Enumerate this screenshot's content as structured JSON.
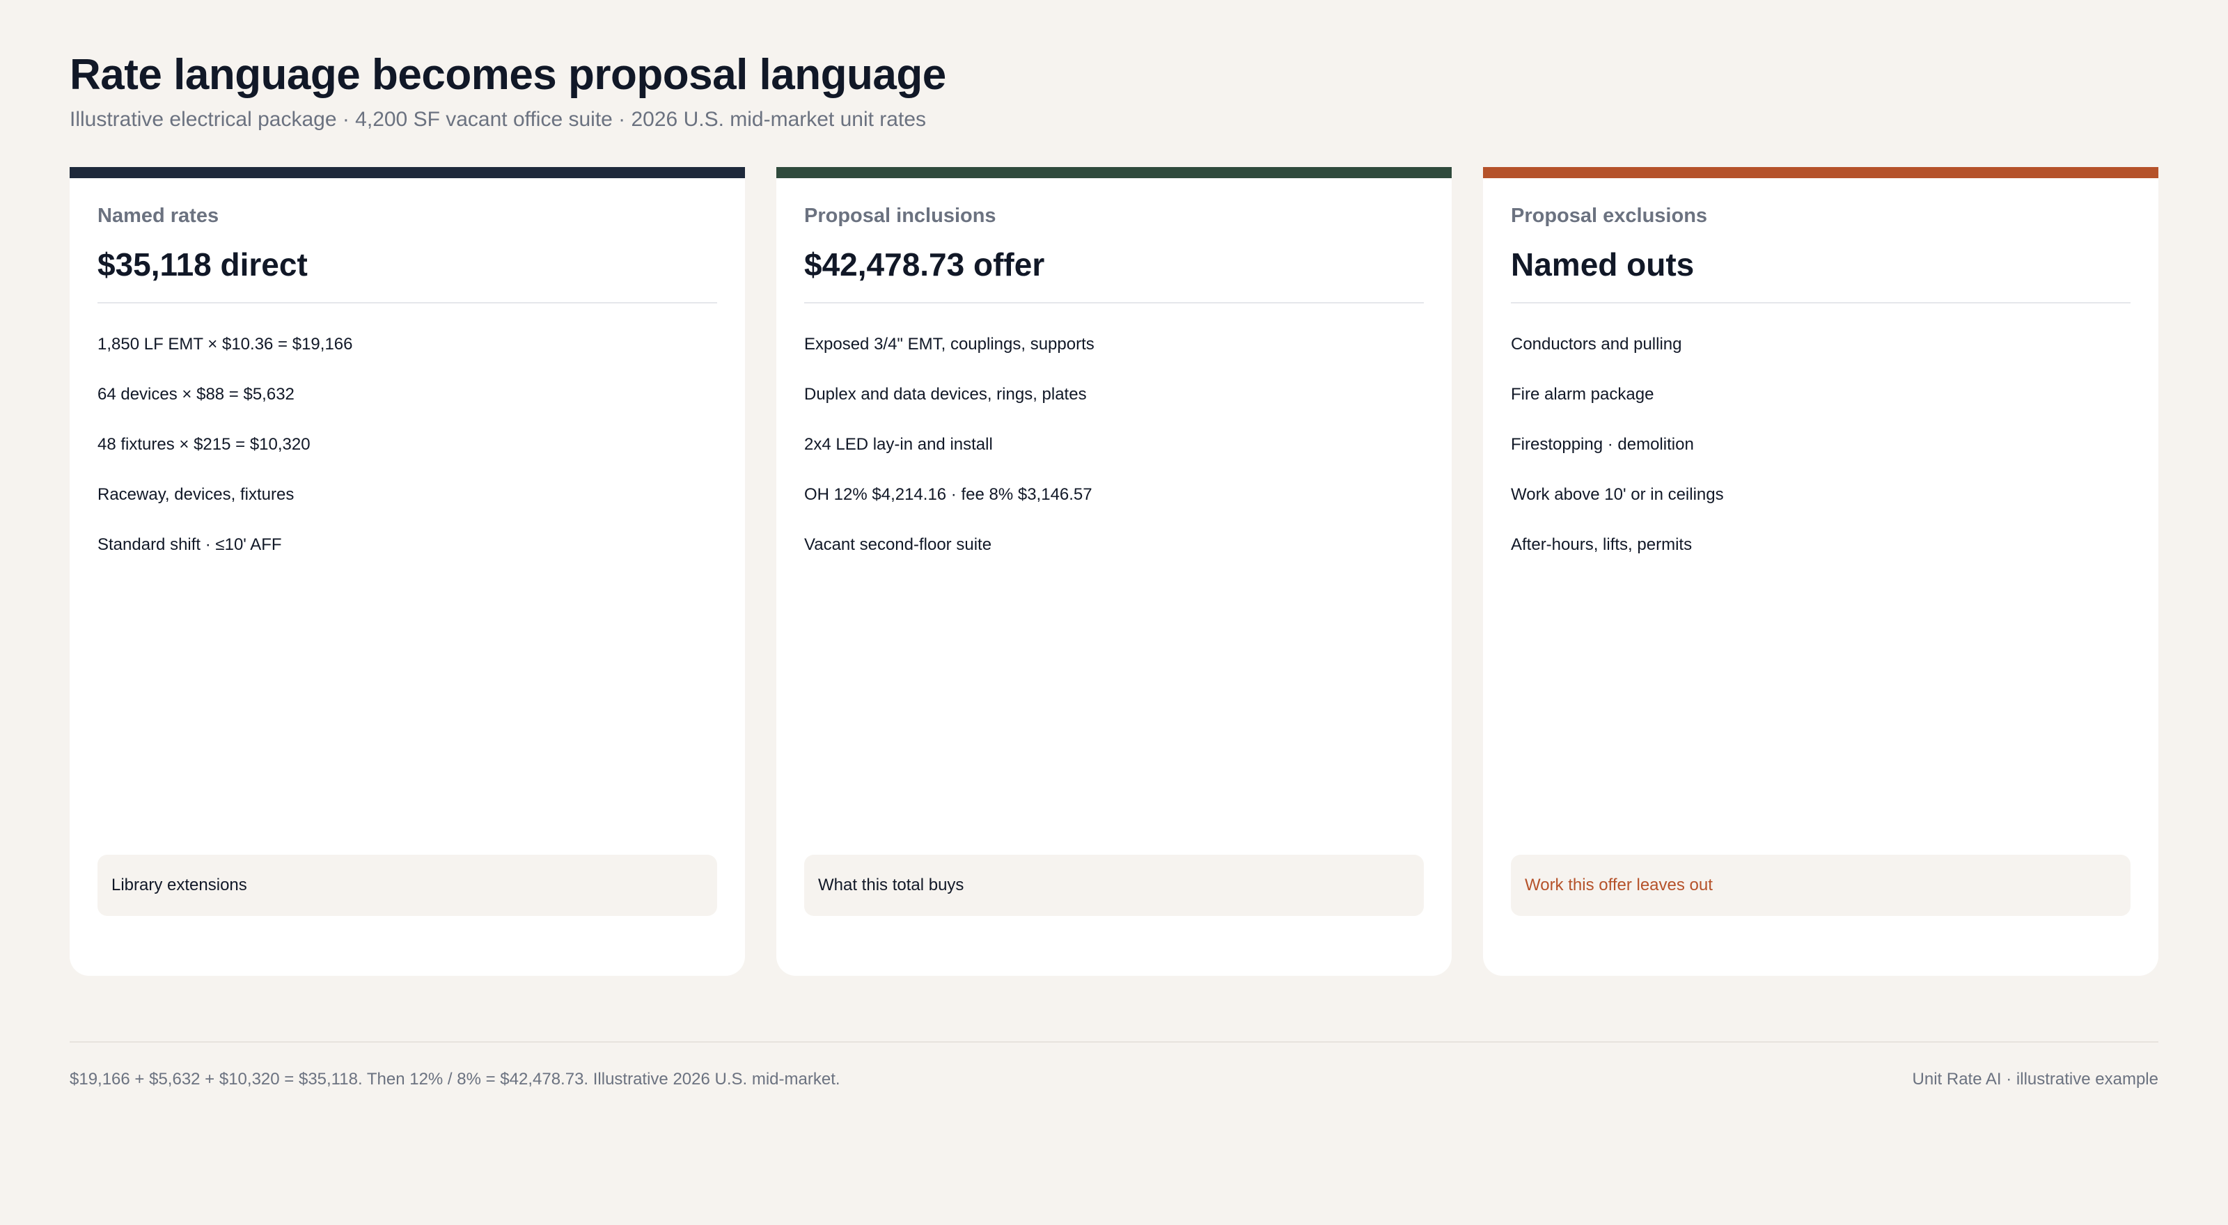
{
  "header": {
    "title": "Rate language becomes proposal language",
    "subtitle": "Illustrative electrical package · 4,200 SF vacant office suite · 2026 U.S. mid-market unit rates"
  },
  "cards": [
    {
      "kicker": "Named rates",
      "headline": "$35,118 direct",
      "accent_color": "#1e293b",
      "items": [
        "1,850 LF EMT × $10.36 = $19,166",
        "64 devices × $88 = $5,632",
        "48 fixtures × $215 = $10,320",
        "Raceway, devices, fixtures",
        "Standard shift · ≤10' AFF"
      ],
      "note": "Library extensions"
    },
    {
      "kicker": "Proposal inclusions",
      "headline": "$42,478.73 offer",
      "accent_color": "#2f4a3c",
      "items": [
        "Exposed 3/4\" EMT, couplings, supports",
        "Duplex and data devices, rings, plates",
        "2x4 LED lay-in and install",
        "OH 12% $4,214.16 · fee 8% $3,146.57",
        "Vacant second-floor suite"
      ],
      "note": "What this total buys"
    },
    {
      "kicker": "Proposal exclusions",
      "headline": "Named outs",
      "accent_color": "#b5522a",
      "items": [
        "Conductors and pulling",
        "Fire alarm package",
        "Firestopping · demolition",
        "Work above 10' or in ceilings",
        "After-hours, lifts, permits"
      ],
      "note": "Work this offer leaves out"
    }
  ],
  "footer": {
    "left": "$19,166 + $5,632 + $10,320 = $35,118. Then 12% / 8% = $42,478.73. Illustrative 2026 U.S. mid-market.",
    "right": "Unit Rate AI · illustrative example"
  }
}
